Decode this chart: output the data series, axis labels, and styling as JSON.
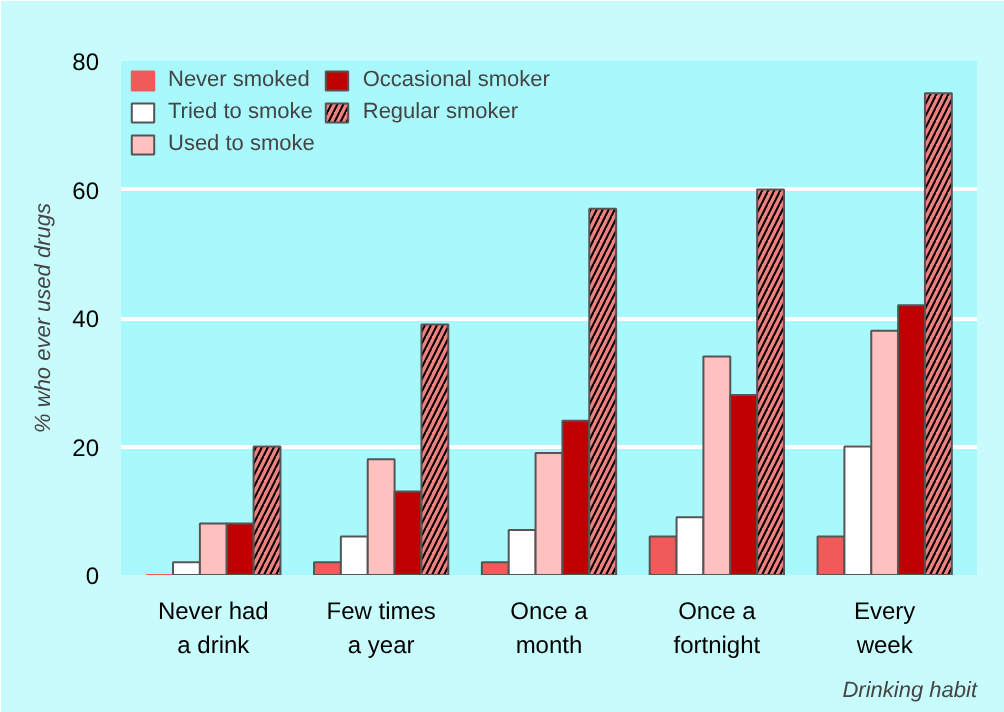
{
  "chart_data": {
    "type": "bar",
    "xlabel": "Drinking habit",
    "ylabel": "% who ever used drugs",
    "categories": [
      "Never had\na drink",
      "Few times\na year",
      "Once a\nmonth",
      "Once a\nfortnight",
      "Every\nweek"
    ],
    "series": [
      {
        "name": "Never smoked",
        "color": "#f05a5a",
        "values": [
          0,
          2,
          2,
          6,
          6
        ]
      },
      {
        "name": "Tried to smoke",
        "color": "#ffffff",
        "values": [
          2,
          6,
          7,
          9,
          20
        ]
      },
      {
        "name": "Used to smoke",
        "color": "#ffc0c0",
        "values": [
          8,
          18,
          19,
          34,
          38
        ]
      },
      {
        "name": "Occasional smoker",
        "color": "#c00000",
        "values": [
          8,
          13,
          24,
          28,
          42
        ]
      },
      {
        "name": "Regular smoker",
        "color": "#f08080",
        "values": [
          20,
          39,
          57,
          60,
          75
        ]
      }
    ],
    "ylim": [
      0,
      80
    ],
    "yticks": [
      0,
      20,
      40,
      60,
      80
    ],
    "grid": "y",
    "legend": "top left"
  }
}
